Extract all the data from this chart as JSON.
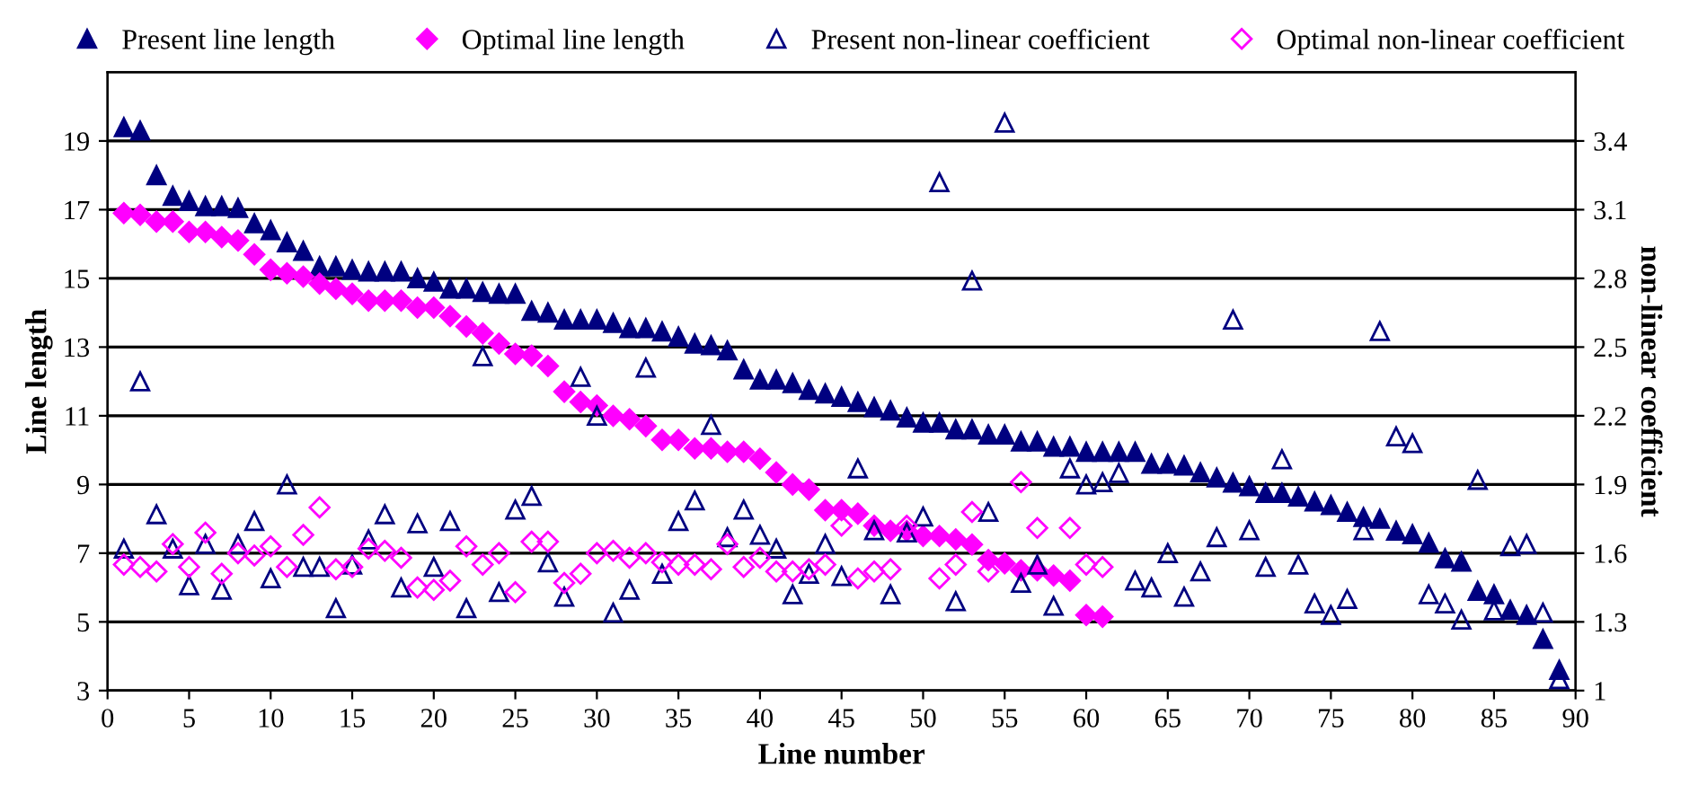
{
  "chart_data": {
    "type": "scatter",
    "xlabel": "Line number",
    "ylabel": "Line length",
    "y2label": "non-linear coefficient",
    "xlim": [
      0,
      90
    ],
    "xticks": [
      0,
      5,
      10,
      15,
      20,
      25,
      30,
      35,
      40,
      45,
      50,
      55,
      60,
      65,
      70,
      75,
      80,
      85,
      90
    ],
    "ylim": [
      3,
      21
    ],
    "yticks": [
      3,
      5,
      7,
      9,
      11,
      13,
      15,
      17,
      19
    ],
    "y2lim": [
      1,
      3.7
    ],
    "y2ticks": [
      1,
      1.3,
      1.6,
      1.9,
      2.2,
      2.5,
      2.8,
      3.1,
      3.4
    ],
    "grid": "y",
    "legend": "top",
    "series": [
      {
        "name": "Present line length",
        "color": "#000080",
        "marker": "triangle",
        "x": [
          1,
          2,
          3,
          4,
          5,
          6,
          7,
          8,
          9,
          10,
          11,
          12,
          13,
          14,
          15,
          16,
          17,
          18,
          19,
          20,
          21,
          22,
          23,
          24,
          25,
          26,
          27,
          28,
          29,
          30,
          31,
          32,
          33,
          34,
          35,
          36,
          37,
          38,
          39,
          40,
          41,
          42,
          43,
          44,
          45,
          46,
          47,
          48,
          49,
          50,
          51,
          52,
          53,
          54,
          55,
          56,
          57,
          58,
          59,
          60,
          61,
          62,
          63,
          64,
          65,
          66,
          67,
          68,
          69,
          70,
          71,
          72,
          73,
          74,
          75,
          76,
          77,
          78,
          79,
          80,
          81,
          82,
          83,
          84,
          85,
          86,
          87,
          88,
          89
        ],
        "values": [
          19.4,
          19.3,
          18.0,
          17.4,
          17.25,
          17.1,
          17.1,
          17.05,
          16.6,
          16.4,
          16.05,
          15.8,
          15.35,
          15.35,
          15.25,
          15.2,
          15.2,
          15.2,
          15.0,
          14.9,
          14.7,
          14.7,
          14.6,
          14.55,
          14.55,
          14.05,
          14.0,
          13.8,
          13.8,
          13.8,
          13.7,
          13.55,
          13.55,
          13.45,
          13.3,
          13.1,
          13.05,
          12.9,
          12.35,
          12.05,
          12.05,
          11.95,
          11.75,
          11.65,
          11.55,
          11.4,
          11.25,
          11.15,
          10.95,
          10.8,
          10.8,
          10.6,
          10.6,
          10.45,
          10.45,
          10.25,
          10.25,
          10.1,
          10.1,
          9.95,
          9.95,
          9.95,
          9.95,
          9.6,
          9.6,
          9.55,
          9.35,
          9.2,
          9.05,
          8.95,
          8.75,
          8.75,
          8.65,
          8.5,
          8.4,
          8.2,
          8.05,
          8.0,
          7.65,
          7.55,
          7.3,
          6.85,
          6.75,
          5.9,
          5.8,
          5.35,
          5.2,
          4.5,
          3.6
        ]
      },
      {
        "name": "Optimal line length",
        "color": "#ff00ff",
        "marker": "diamond",
        "x": [
          1,
          2,
          3,
          4,
          5,
          6,
          7,
          8,
          9,
          10,
          11,
          12,
          13,
          14,
          15,
          16,
          17,
          18,
          19,
          20,
          21,
          22,
          23,
          24,
          25,
          26,
          27,
          28,
          29,
          30,
          31,
          32,
          33,
          34,
          35,
          36,
          37,
          38,
          39,
          40,
          41,
          42,
          43,
          44,
          45,
          46,
          47,
          48,
          49,
          50,
          51,
          52,
          53,
          54,
          55,
          56,
          57,
          58,
          59,
          60,
          61
        ],
        "values": [
          16.9,
          16.85,
          16.65,
          16.65,
          16.35,
          16.35,
          16.2,
          16.1,
          15.7,
          15.25,
          15.15,
          15.05,
          14.85,
          14.7,
          14.55,
          14.35,
          14.35,
          14.35,
          14.15,
          14.15,
          13.9,
          13.6,
          13.4,
          13.1,
          12.8,
          12.75,
          12.45,
          11.7,
          11.4,
          11.3,
          11.0,
          10.9,
          10.7,
          10.3,
          10.3,
          10.05,
          10.05,
          9.95,
          9.95,
          9.75,
          9.35,
          9.0,
          8.85,
          8.25,
          8.25,
          8.15,
          7.8,
          7.65,
          7.65,
          7.5,
          7.5,
          7.4,
          7.25,
          6.8,
          6.7,
          6.5,
          6.5,
          6.35,
          6.2,
          5.2,
          5.15
        ]
      },
      {
        "name": "Present non-linear coefficient",
        "color": "#000080",
        "marker": "triangle",
        "axis": "y2",
        "x": [
          1,
          2,
          3,
          4,
          5,
          6,
          7,
          8,
          9,
          10,
          11,
          12,
          13,
          14,
          15,
          16,
          17,
          18,
          19,
          20,
          21,
          22,
          23,
          24,
          25,
          26,
          27,
          28,
          29,
          30,
          31,
          32,
          33,
          34,
          35,
          36,
          37,
          38,
          39,
          40,
          41,
          42,
          43,
          44,
          45,
          46,
          47,
          48,
          49,
          50,
          51,
          52,
          53,
          54,
          55,
          56,
          57,
          58,
          59,
          60,
          61,
          62,
          63,
          64,
          65,
          66,
          67,
          68,
          69,
          70,
          71,
          72,
          73,
          74,
          75,
          76,
          77,
          78,
          79,
          80,
          81,
          82,
          83,
          84,
          85,
          86,
          87,
          88,
          89
        ],
        "values": [
          1.62,
          2.35,
          1.77,
          1.62,
          1.46,
          1.64,
          1.44,
          1.64,
          1.74,
          1.49,
          1.9,
          1.54,
          1.54,
          1.36,
          1.55,
          1.66,
          1.77,
          1.45,
          1.73,
          1.54,
          1.74,
          1.36,
          2.46,
          1.43,
          1.79,
          1.85,
          1.56,
          1.41,
          2.37,
          2.2,
          1.34,
          1.44,
          2.41,
          1.51,
          1.74,
          1.83,
          2.16,
          1.67,
          1.79,
          1.68,
          1.62,
          1.42,
          1.51,
          1.64,
          1.5,
          1.97,
          1.7,
          1.42,
          1.69,
          1.76,
          3.22,
          1.39,
          2.79,
          1.78,
          3.48,
          1.47,
          1.55,
          1.37,
          1.97,
          1.9,
          1.91,
          1.95,
          1.48,
          1.45,
          1.6,
          1.41,
          1.52,
          1.67,
          2.62,
          1.7,
          1.54,
          2.01,
          1.55,
          1.38,
          1.33,
          1.4,
          1.7,
          2.57,
          2.11,
          2.08,
          1.42,
          1.38,
          1.31,
          1.92,
          1.35,
          1.63,
          1.64,
          1.34,
          1.05
        ]
      },
      {
        "name": "Optimal non-linear coefficient",
        "color": "#ff00ff",
        "marker": "diamond",
        "axis": "y2",
        "x": [
          1,
          2,
          3,
          4,
          5,
          6,
          7,
          8,
          9,
          10,
          11,
          12,
          13,
          14,
          15,
          16,
          17,
          18,
          19,
          20,
          21,
          22,
          23,
          24,
          25,
          26,
          27,
          28,
          29,
          30,
          31,
          32,
          33,
          34,
          35,
          36,
          37,
          38,
          39,
          40,
          41,
          42,
          43,
          44,
          45,
          46,
          47,
          48,
          49,
          50,
          51,
          52,
          53,
          54,
          55,
          56,
          57,
          58,
          59,
          60,
          61
        ],
        "values": [
          1.55,
          1.54,
          1.52,
          1.64,
          1.54,
          1.69,
          1.51,
          1.6,
          1.59,
          1.63,
          1.54,
          1.68,
          1.8,
          1.53,
          1.54,
          1.62,
          1.61,
          1.58,
          1.45,
          1.44,
          1.48,
          1.63,
          1.55,
          1.6,
          1.43,
          1.65,
          1.65,
          1.47,
          1.51,
          1.6,
          1.61,
          1.58,
          1.6,
          1.56,
          1.55,
          1.55,
          1.53,
          1.64,
          1.54,
          1.58,
          1.52,
          1.52,
          1.53,
          1.55,
          1.72,
          1.49,
          1.52,
          1.53,
          1.72,
          null,
          1.49,
          1.55,
          1.78,
          1.52,
          null,
          1.91,
          1.71,
          null,
          1.71,
          1.55,
          1.54
        ]
      }
    ]
  }
}
